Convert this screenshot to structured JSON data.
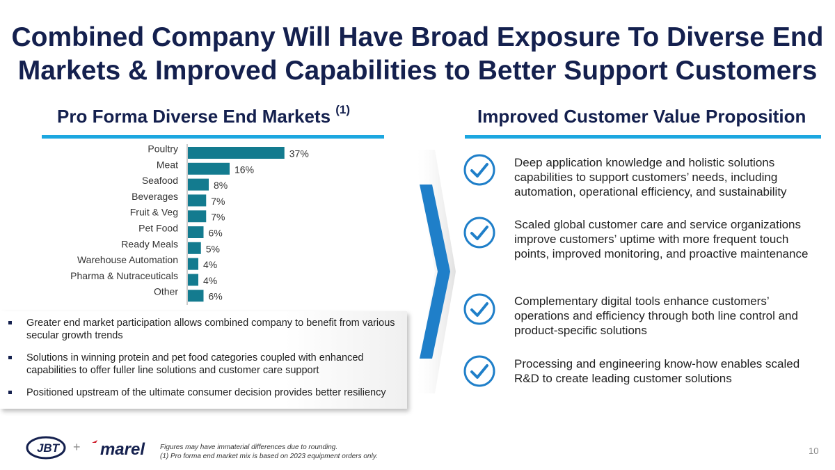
{
  "title": {
    "line1": "Combined Company Will Have Broad Exposure To Diverse End",
    "line2": "Markets & Improved Capabilities to Better Support Customers"
  },
  "left_heading": {
    "text": "Pro Forma Diverse End Markets ",
    "footnote_ref": "(1)"
  },
  "right_heading": {
    "text": "Improved Customer Value Proposition"
  },
  "chart_data": {
    "type": "bar",
    "orientation": "horizontal",
    "categories": [
      "Poultry",
      "Meat",
      "Seafood",
      "Beverages",
      "Fruit & Veg",
      "Pet Food",
      "Ready Meals",
      "Warehouse Automation",
      "Pharma & Nutraceuticals",
      "Other"
    ],
    "values": [
      37,
      16,
      8,
      7,
      7,
      6,
      5,
      4,
      4,
      6
    ],
    "value_labels": [
      "37%",
      "16%",
      "8%",
      "7%",
      "7%",
      "6%",
      "5%",
      "4%",
      "4%",
      "6%"
    ],
    "unit": "%",
    "xlim": [
      0,
      40
    ],
    "bar_color": "#137b8f",
    "title": "",
    "xlabel": "",
    "ylabel": ""
  },
  "bullets": [
    "Greater end market participation allows combined company to benefit from various secular growth trends",
    "Solutions in winning protein and pet food categories coupled with enhanced capabilities to offer fuller line solutions and customer care support",
    "Positioned upstream of the ultimate consumer decision provides better resiliency"
  ],
  "value_props": [
    "Deep application knowledge and holistic solutions capabilities to support customers’ needs, including automation, operational efficiency, and sustainability",
    "Scaled global customer care and service organizations improve customers’ uptime with more frequent touch points, improved monitoring, and proactive maintenance",
    "Complementary digital tools enhance customers’ operations and efficiency through both line control and product-specific solutions",
    "Processing and engineering know-how enables scaled R&D to create leading customer solutions"
  ],
  "footer": {
    "note1": "Figures may have immaterial differences due to rounding.",
    "note2": "(1) Pro forma end market mix is based on 2023 equipment orders only.",
    "page_number": "10",
    "logo_left": "JBT",
    "logo_plus": "+",
    "logo_right": "marel"
  },
  "colors": {
    "title": "#14204e",
    "accent": "#1ca7e0",
    "bar": "#137b8f",
    "check": "#1f7fc9"
  }
}
